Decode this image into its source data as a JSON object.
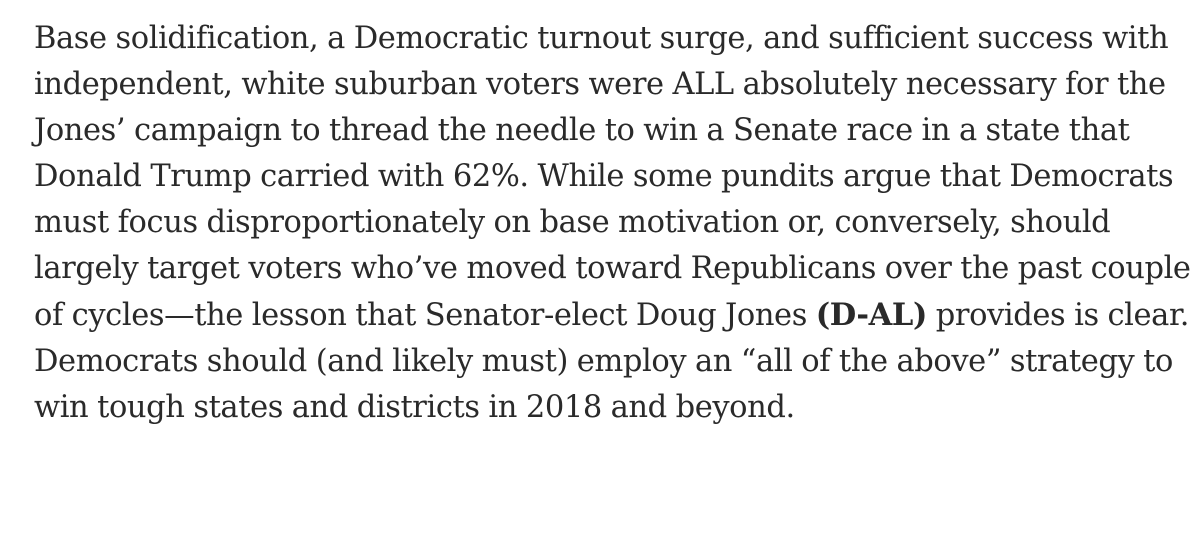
{
  "article": {
    "lines": [
      "Base solidification, a Democratic turnout surge, and sufficient success with",
      "independent, white suburban voters were ALL absolutely necessary for the",
      "Jones’ campaign to thread the needle to win a Senate race in a state that",
      "Donald Trump carried with 62%. While some pundits argue that Democrats",
      "must focus disproportionately on base motivation or, conversely, should",
      "largely target voters who’ve moved toward Republicans over the past couple"
    ],
    "line7": {
      "before": "of cycles—the lesson that Senator-elect Doug Jones ",
      "bold": "(D-AL)",
      "after": " provides is clear."
    },
    "lines_end": [
      "Democrats should (and likely must) employ an “all of the above” strategy to",
      "win tough states and districts in 2018 and beyond."
    ]
  }
}
